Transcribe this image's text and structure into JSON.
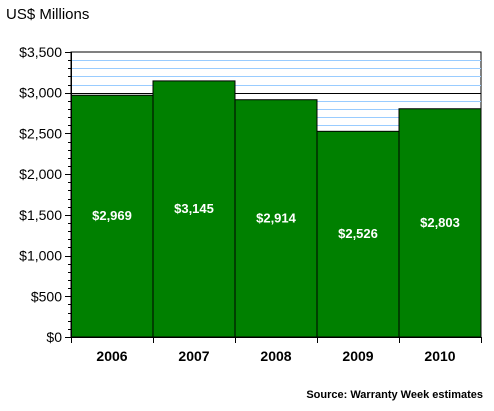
{
  "chart_data": {
    "type": "bar",
    "ylabel": "US$ Millions",
    "categories": [
      "2006",
      "2007",
      "2008",
      "2009",
      "2010"
    ],
    "values": [
      2969,
      3145,
      2914,
      2526,
      2803
    ],
    "value_labels": [
      "$2,969",
      "$3,145",
      "$2,914",
      "$2,526",
      "$2,803"
    ],
    "ylim": [
      0,
      3500
    ],
    "yticks": [
      0,
      500,
      1000,
      1500,
      2000,
      2500,
      3000,
      3500
    ],
    "ytick_labels": [
      "$0",
      "$500",
      "$1,000",
      "$1,500",
      "$2,000",
      "$2,500",
      "$3,000",
      "$3,500"
    ],
    "grid": true,
    "bar_color": "#008000",
    "gridline_color": "#99ccff",
    "source": "Source: Warranty Week estimates"
  }
}
